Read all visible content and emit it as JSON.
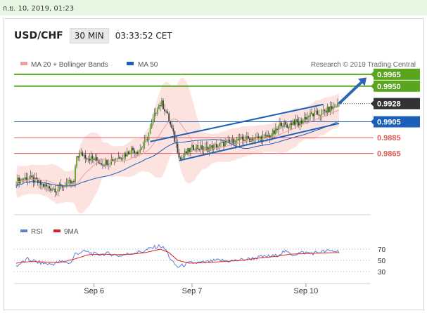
{
  "timestamp": "ก.ย. 10, 2019, 01:23",
  "header": {
    "symbol": "USD/CHF",
    "timeframe": "30 MIN",
    "time": "03:33:52 CET"
  },
  "legend": {
    "ma20": "MA 20 + Bollinger Bands",
    "ma50": "MA 50",
    "credit": "Research © 2019 Trading Central"
  },
  "rsi_legend": {
    "rsi": "RSI",
    "ma": "9MA"
  },
  "colors": {
    "green": "#5aa51e",
    "blue": "#1c5fb8",
    "red": "#e05a5a",
    "dark": "#333333"
  },
  "chart_data": {
    "type": "candlestick",
    "x_ticks": [
      "Sep 6",
      "Sep 7",
      "Sep 10"
    ],
    "price_levels": [
      {
        "value": "0.9965",
        "kind": "target",
        "color": "green"
      },
      {
        "value": "0.9950",
        "kind": "target",
        "color": "green"
      },
      {
        "value": "0.9928",
        "kind": "current",
        "color": "dark"
      },
      {
        "value": "0.9905",
        "kind": "pivot",
        "color": "blue"
      },
      {
        "value": "0.9885",
        "kind": "support",
        "color": "red"
      },
      {
        "value": "0.9865",
        "kind": "support",
        "color": "red"
      }
    ],
    "rsi_axis": [
      "70",
      "50",
      "30"
    ],
    "price_path": [
      [
        0,
        0.983
      ],
      [
        8,
        0.9835
      ],
      [
        16,
        0.9827
      ],
      [
        22,
        0.9822
      ],
      [
        28,
        0.982
      ],
      [
        34,
        0.9826
      ],
      [
        40,
        0.9828
      ],
      [
        42,
        0.9862
      ],
      [
        46,
        0.9864
      ],
      [
        50,
        0.986
      ],
      [
        55,
        0.9857
      ],
      [
        60,
        0.9853
      ],
      [
        65,
        0.9856
      ],
      [
        70,
        0.986
      ],
      [
        75,
        0.9863
      ],
      [
        80,
        0.987
      ],
      [
        85,
        0.9868
      ],
      [
        90,
        0.988
      ],
      [
        94,
        0.99
      ],
      [
        98,
        0.9925
      ],
      [
        101,
        0.9928
      ],
      [
        104,
        0.9918
      ],
      [
        108,
        0.9895
      ],
      [
        112,
        0.987
      ],
      [
        114,
        0.9858
      ],
      [
        118,
        0.9866
      ],
      [
        124,
        0.9874
      ],
      [
        130,
        0.987
      ],
      [
        136,
        0.9873
      ],
      [
        142,
        0.9876
      ],
      [
        150,
        0.988
      ],
      [
        158,
        0.9883
      ],
      [
        166,
        0.9884
      ],
      [
        174,
        0.9886
      ],
      [
        180,
        0.9892
      ],
      [
        184,
        0.9904
      ],
      [
        188,
        0.9898
      ],
      [
        192,
        0.9906
      ],
      [
        196,
        0.9902
      ],
      [
        200,
        0.991
      ],
      [
        205,
        0.9914
      ],
      [
        210,
        0.9915
      ],
      [
        215,
        0.9919
      ],
      [
        220,
        0.9923
      ],
      [
        224,
        0.9928
      ]
    ],
    "rsi_path": [
      [
        0,
        40
      ],
      [
        8,
        52
      ],
      [
        16,
        46
      ],
      [
        24,
        43
      ],
      [
        32,
        48
      ],
      [
        38,
        45
      ],
      [
        41,
        62
      ],
      [
        48,
        66
      ],
      [
        56,
        60
      ],
      [
        64,
        62
      ],
      [
        72,
        58
      ],
      [
        80,
        63
      ],
      [
        88,
        66
      ],
      [
        94,
        72
      ],
      [
        100,
        76
      ],
      [
        104,
        68
      ],
      [
        108,
        48
      ],
      [
        112,
        38
      ],
      [
        120,
        45
      ],
      [
        130,
        46
      ],
      [
        140,
        50
      ],
      [
        150,
        49
      ],
      [
        160,
        52
      ],
      [
        170,
        56
      ],
      [
        180,
        58
      ],
      [
        186,
        66
      ],
      [
        192,
        60
      ],
      [
        198,
        64
      ],
      [
        206,
        63
      ],
      [
        214,
        66
      ],
      [
        220,
        67
      ],
      [
        224,
        66
      ]
    ],
    "rsi_ma_path": [
      [
        0,
        45
      ],
      [
        10,
        48
      ],
      [
        20,
        47
      ],
      [
        30,
        46
      ],
      [
        40,
        52
      ],
      [
        50,
        60
      ],
      [
        60,
        61
      ],
      [
        70,
        60
      ],
      [
        80,
        61
      ],
      [
        90,
        64
      ],
      [
        100,
        70
      ],
      [
        106,
        64
      ],
      [
        112,
        50
      ],
      [
        120,
        45
      ],
      [
        132,
        46
      ],
      [
        144,
        48
      ],
      [
        156,
        50
      ],
      [
        168,
        54
      ],
      [
        180,
        57
      ],
      [
        190,
        61
      ],
      [
        200,
        62
      ],
      [
        210,
        63
      ],
      [
        224,
        64
      ]
    ]
  }
}
